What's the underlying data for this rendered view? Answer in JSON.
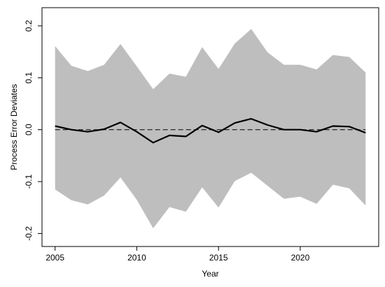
{
  "chart_data": {
    "type": "area",
    "title": "",
    "xlabel": "Year",
    "ylabel": "Process Error Deviates",
    "xlim": [
      2004.2,
      2024.8
    ],
    "ylim": [
      -0.225,
      0.235
    ],
    "xticks": [
      2005,
      2010,
      2015,
      2020
    ],
    "yticks": [
      -0.2,
      -0.1,
      0.0,
      0.1,
      0.2
    ],
    "xtick_labels": [
      "2005",
      "2010",
      "2015",
      "2020"
    ],
    "ytick_labels": [
      "-0.2",
      "-0.1",
      "0.0",
      "0.1",
      "0.2"
    ],
    "grid": false,
    "reference_line": {
      "y": 0.0,
      "style": "dashed"
    },
    "band_color": "#bebebe",
    "line_color": "#000000",
    "series": [
      {
        "x": [
          2005,
          2006,
          2007,
          2008,
          2009,
          2010,
          2011,
          2012,
          2013,
          2014,
          2015,
          2016,
          2017,
          2018,
          2019,
          2020,
          2021,
          2022,
          2023,
          2024
        ],
        "values": [
          0.007,
          0.0,
          -0.004,
          0.001,
          0.014,
          -0.004,
          -0.025,
          -0.011,
          -0.013,
          0.008,
          -0.005,
          0.013,
          0.021,
          0.009,
          0.0,
          0.0,
          -0.004,
          0.007,
          0.006,
          -0.006
        ],
        "lower": [
          -0.115,
          -0.136,
          -0.144,
          -0.127,
          -0.092,
          -0.135,
          -0.19,
          -0.149,
          -0.158,
          -0.111,
          -0.15,
          -0.099,
          -0.083,
          -0.108,
          -0.133,
          -0.129,
          -0.143,
          -0.106,
          -0.113,
          -0.146
        ],
        "upper": [
          0.161,
          0.123,
          0.113,
          0.125,
          0.165,
          0.122,
          0.078,
          0.108,
          0.102,
          0.159,
          0.117,
          0.166,
          0.194,
          0.149,
          0.125,
          0.125,
          0.116,
          0.144,
          0.14,
          0.11
        ]
      }
    ]
  }
}
